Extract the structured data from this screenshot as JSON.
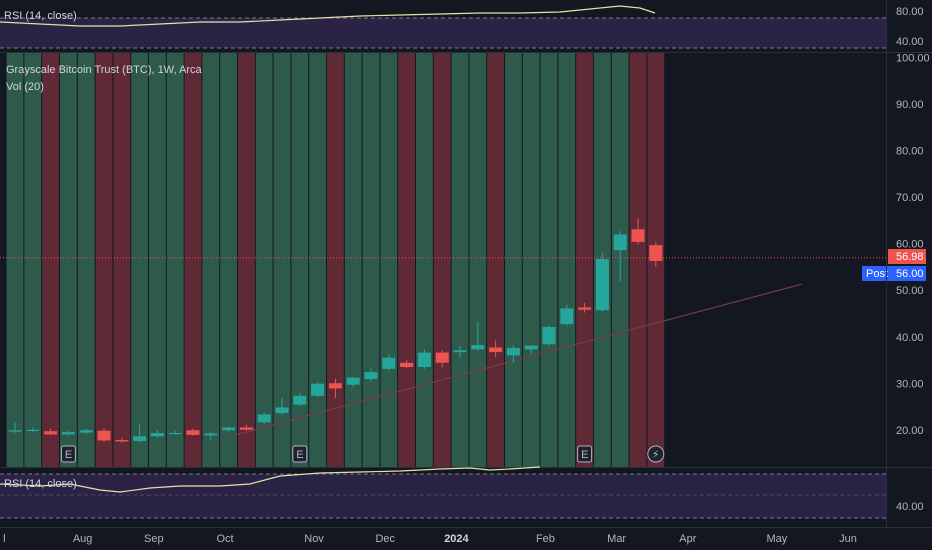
{
  "chart_data": {
    "type": "candlestick",
    "title": "Grayscale Bitcoin Trust (BTC), 1W, Arca",
    "volume_label": "Vol (20)",
    "rsi_top_label": "RSI (14, close)",
    "rsi_bottom_label": "RSI (14, close)",
    "ylim": [
      12,
      101
    ],
    "y_ticks": [
      "20.00",
      "30.00",
      "40.00",
      "50.00",
      "60.00",
      "70.00",
      "80.00",
      "90.00",
      "100.00"
    ],
    "rsi_top_ticks": [
      "80.00",
      "40.00"
    ],
    "rsi_bottom_ticks": [
      "40.00"
    ],
    "x_ticks": [
      {
        "label": "l",
        "week": -0.6
      },
      {
        "label": "Aug",
        "week": 3.8
      },
      {
        "label": "Sep",
        "week": 7.8
      },
      {
        "label": "Oct",
        "week": 11.8
      },
      {
        "label": "Nov",
        "week": 16.8
      },
      {
        "label": "Dec",
        "week": 20.8
      },
      {
        "label": "2024",
        "week": 24.8,
        "bold": true
      },
      {
        "label": "Feb",
        "week": 29.8
      },
      {
        "label": "Mar",
        "week": 33.8
      },
      {
        "label": "Apr",
        "week": 37.8
      },
      {
        "label": "May",
        "week": 42.8
      },
      {
        "label": "Jun",
        "week": 46.8
      }
    ],
    "candles": [
      {
        "o": 19.6,
        "h": 21.6,
        "l": 19.3,
        "c": 19.9
      },
      {
        "o": 19.9,
        "h": 20.5,
        "l": 19.5,
        "c": 20.0
      },
      {
        "o": 19.7,
        "h": 20.3,
        "l": 18.8,
        "c": 19.0
      },
      {
        "o": 19.0,
        "h": 19.8,
        "l": 18.7,
        "c": 19.5
      },
      {
        "o": 19.4,
        "h": 20.2,
        "l": 19.1,
        "c": 19.9
      },
      {
        "o": 19.8,
        "h": 20.3,
        "l": 17.4,
        "c": 17.7
      },
      {
        "o": 17.8,
        "h": 18.2,
        "l": 17.2,
        "c": 17.5
      },
      {
        "o": 17.6,
        "h": 21.2,
        "l": 17.3,
        "c": 18.6
      },
      {
        "o": 18.6,
        "h": 19.9,
        "l": 18.3,
        "c": 19.3
      },
      {
        "o": 19.3,
        "h": 19.8,
        "l": 19.0,
        "c": 19.3
      },
      {
        "o": 19.9,
        "h": 20.2,
        "l": 18.7,
        "c": 18.9
      },
      {
        "o": 18.8,
        "h": 19.5,
        "l": 17.7,
        "c": 19.2
      },
      {
        "o": 19.9,
        "h": 20.7,
        "l": 19.6,
        "c": 20.5
      },
      {
        "o": 20.5,
        "h": 21.1,
        "l": 19.8,
        "c": 20.0
      },
      {
        "o": 21.6,
        "h": 23.8,
        "l": 21.3,
        "c": 23.3
      },
      {
        "o": 23.6,
        "h": 26.8,
        "l": 23.2,
        "c": 24.8
      },
      {
        "o": 25.4,
        "h": 27.9,
        "l": 25.1,
        "c": 27.3
      },
      {
        "o": 27.3,
        "h": 30.2,
        "l": 27.0,
        "c": 29.9
      },
      {
        "o": 30.0,
        "h": 31.0,
        "l": 26.8,
        "c": 28.9
      },
      {
        "o": 29.7,
        "h": 31.4,
        "l": 29.2,
        "c": 31.2
      },
      {
        "o": 30.9,
        "h": 33.2,
        "l": 30.4,
        "c": 32.4
      },
      {
        "o": 33.1,
        "h": 36.2,
        "l": 32.7,
        "c": 35.5
      },
      {
        "o": 34.4,
        "h": 35.0,
        "l": 33.2,
        "c": 33.5
      },
      {
        "o": 33.5,
        "h": 37.3,
        "l": 33.1,
        "c": 36.6
      },
      {
        "o": 36.6,
        "h": 37.1,
        "l": 33.4,
        "c": 34.4
      },
      {
        "o": 36.7,
        "h": 38.0,
        "l": 35.6,
        "c": 37.1
      },
      {
        "o": 37.3,
        "h": 43.2,
        "l": 37.0,
        "c": 38.2
      },
      {
        "o": 37.7,
        "h": 39.2,
        "l": 35.6,
        "c": 36.7
      },
      {
        "o": 36.0,
        "h": 38.2,
        "l": 34.4,
        "c": 37.6
      },
      {
        "o": 37.3,
        "h": 38.0,
        "l": 36.3,
        "c": 38.1
      },
      {
        "o": 38.4,
        "h": 42.5,
        "l": 38.1,
        "c": 42.1
      },
      {
        "o": 42.7,
        "h": 46.9,
        "l": 42.4,
        "c": 46.1
      },
      {
        "o": 46.3,
        "h": 47.3,
        "l": 45.2,
        "c": 45.8
      },
      {
        "o": 45.7,
        "h": 58.1,
        "l": 45.4,
        "c": 56.7
      },
      {
        "o": 58.6,
        "h": 62.7,
        "l": 51.9,
        "c": 62.0
      },
      {
        "o": 63.1,
        "h": 65.5,
        "l": 59.9,
        "c": 60.4
      },
      {
        "o": 59.7,
        "h": 60.3,
        "l": 55.1,
        "c": 56.3
      }
    ],
    "earnings_markers": [
      {
        "week": 3,
        "label": "E"
      },
      {
        "week": 16,
        "label": "E"
      },
      {
        "week": 32,
        "label": "E"
      }
    ],
    "dividend_marker": {
      "week": 36,
      "label": "⚡"
    },
    "trendline": [
      {
        "week": 12,
        "value": 18.5
      },
      {
        "week": 44.2,
        "value": 51.3
      }
    ],
    "last_price": {
      "label": "56.98",
      "value": 56.98
    },
    "post_price": {
      "tag": "Post",
      "label": "56.00",
      "value": 56.0
    },
    "colors": {
      "up": "#26a69a",
      "down": "#ef5350",
      "vol_up": "#2e5a4b",
      "vol_down": "#5f2a36",
      "background": "#131722",
      "rsi_line": "#e6e0a4",
      "rsi_band": "#2a2345",
      "post_bg": "#2962ff",
      "trendline": "#7a3a48"
    }
  }
}
